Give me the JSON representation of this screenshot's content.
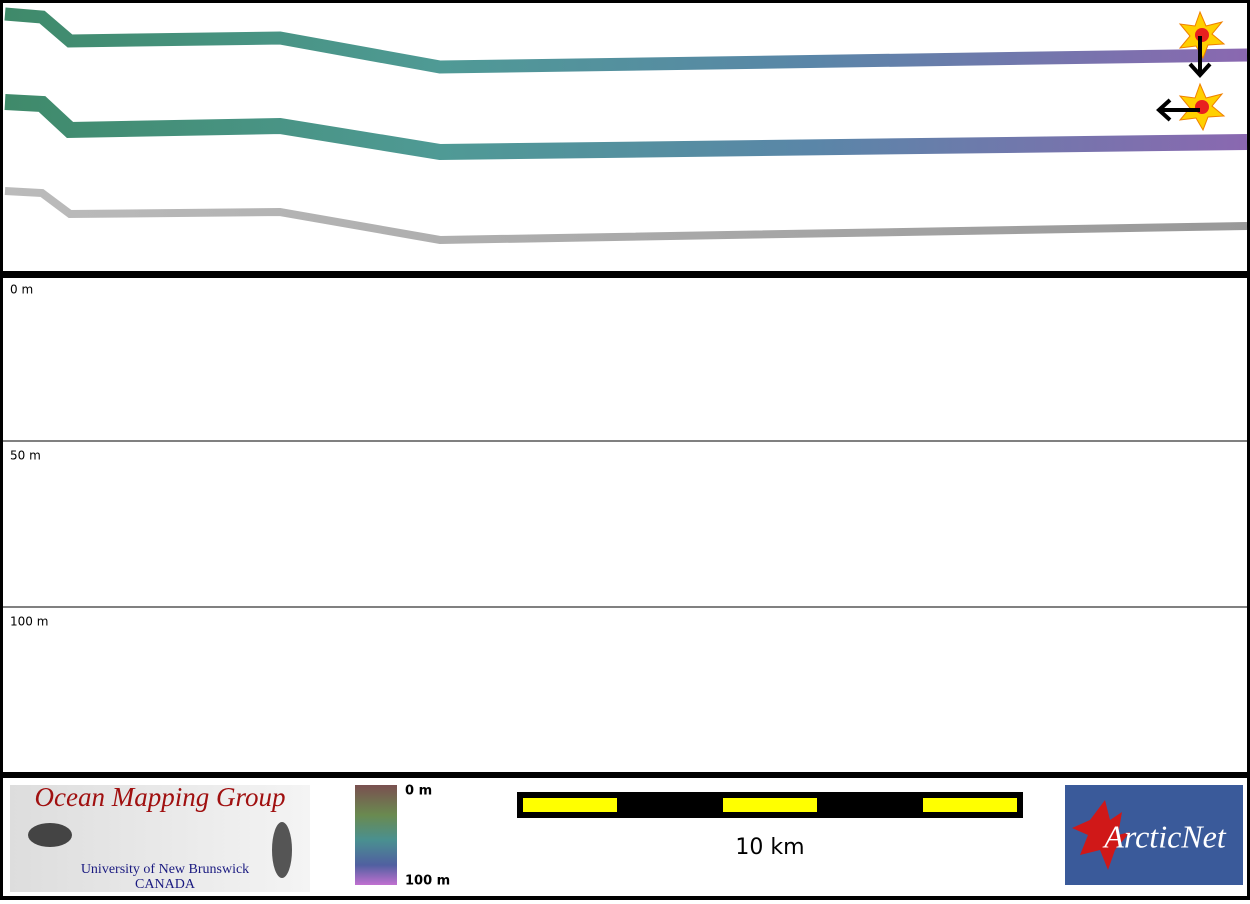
{
  "profile": {
    "depth_labels": [
      "0 m",
      "50 m",
      "100 m"
    ]
  },
  "legend": {
    "organization": {
      "name": "Ocean Mapping Group",
      "university": "University of New Brunswick",
      "country": "CANADA"
    },
    "colorbar": {
      "top_label": "0 m",
      "bottom_label": "100 m"
    },
    "scale_bar": {
      "label": "10 km"
    },
    "partner": {
      "name": "ArcticNet"
    }
  }
}
